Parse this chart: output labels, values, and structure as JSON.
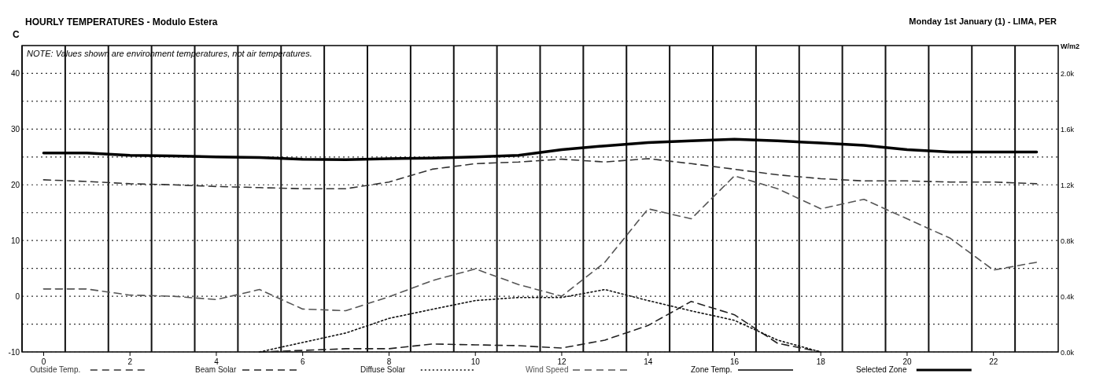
{
  "chart_data": {
    "type": "line",
    "title": "HOURLY TEMPERATURES - Modulo Estera",
    "subtitle": "Monday 1st January (1) - LIMA, PER",
    "ylabel": "C",
    "y2label": "W/m2",
    "annotations": [
      "NOTE: Values shown are environment temperatures, not air temperatures."
    ],
    "x": [
      0,
      1,
      2,
      3,
      4,
      5,
      6,
      7,
      8,
      9,
      10,
      11,
      12,
      13,
      14,
      15,
      16,
      17,
      18,
      19,
      20,
      21,
      22,
      23
    ],
    "xlim": [
      -0.5,
      23.5
    ],
    "xticks": [
      0,
      2,
      4,
      6,
      8,
      10,
      12,
      14,
      16,
      18,
      20,
      22,
      {
        "value": -0.5,
        "label": null
      },
      {
        "value": 0.5,
        "label": null
      },
      {
        "value": 1.5,
        "label": null
      },
      {
        "value": 2.5,
        "label": null
      },
      {
        "value": 3.5,
        "label": null
      },
      {
        "value": 4.5,
        "label": null
      },
      {
        "value": 5.5,
        "label": null
      },
      {
        "value": 6.5,
        "label": null
      },
      {
        "value": 7.5,
        "label": null
      },
      {
        "value": 8.5,
        "label": null
      },
      {
        "value": 9.5,
        "label": null
      },
      {
        "value": 10.5,
        "label": null
      },
      {
        "value": 11.5,
        "label": null
      },
      {
        "value": 12.5,
        "label": null
      },
      {
        "value": 13.5,
        "label": null
      },
      {
        "value": 14.5,
        "label": null
      },
      {
        "value": 15.5,
        "label": null
      },
      {
        "value": 16.5,
        "label": null
      },
      {
        "value": 17.5,
        "label": null
      },
      {
        "value": 18.5,
        "label": null
      },
      {
        "value": 19.5,
        "label": null
      },
      {
        "value": 20.5,
        "label": null
      },
      {
        "value": 21.5,
        "label": null
      },
      {
        "value": 22.5,
        "label": null
      }
    ],
    "ylim": [
      -10,
      45
    ],
    "yticks": [
      -10,
      0,
      10,
      20,
      30,
      40,
      {
        "value": -5,
        "label": null
      },
      {
        "value": 5,
        "label": null
      },
      {
        "value": 15,
        "label": null
      },
      {
        "value": 25,
        "label": null
      },
      {
        "value": 35,
        "label": null
      }
    ],
    "y2lim": [
      0,
      2200
    ],
    "y2ticks": [
      {
        "value": 0,
        "label": "0.0k"
      },
      {
        "value": 400,
        "label": "0.4k"
      },
      {
        "value": 800,
        "label": "0.8k"
      },
      {
        "value": 1200,
        "label": "1.2k"
      },
      {
        "value": 1600,
        "label": "1.6k"
      },
      {
        "value": 2000,
        "label": "2.0k"
      }
    ],
    "grid": true,
    "legend": "bottom",
    "series": [
      {
        "name": "Outside Temp.",
        "color": "#333333",
        "line_style": "dashed",
        "values": [
          20.9,
          20.6,
          20.2,
          20.0,
          19.7,
          19.5,
          19.3,
          19.3,
          20.5,
          22.8,
          23.8,
          24.1,
          24.6,
          24.1,
          24.7,
          23.8,
          22.8,
          21.8,
          21.1,
          20.7,
          20.7,
          20.5,
          20.5,
          20.2
        ]
      },
      {
        "name": "Beam Solar",
        "color": "#222222",
        "line_style": "dashed",
        "axis": "y2",
        "values": [
          null,
          null,
          null,
          null,
          null,
          0,
          11,
          23,
          23,
          57,
          51,
          45,
          28,
          85,
          190,
          363,
          267,
          62,
          0,
          null,
          null,
          null,
          null,
          null
        ]
      },
      {
        "name": "Diffuse Solar",
        "color": "#111111",
        "line_style": "dotted",
        "axis": "y2",
        "values": [
          null,
          null,
          null,
          null,
          null,
          0,
          68,
          136,
          241,
          306,
          369,
          391,
          391,
          448,
          369,
          295,
          227,
          85,
          0,
          null,
          null,
          null,
          null,
          null
        ]
      },
      {
        "name": "Wind Speed",
        "color": "#555555",
        "line_style": "dashed",
        "values": [
          1.3,
          1.3,
          0.2,
          0,
          -0.6,
          1.2,
          -2.3,
          -2.6,
          -0.1,
          2.8,
          4.9,
          2.1,
          0,
          6.1,
          15.7,
          13.9,
          21.6,
          19.3,
          15.7,
          17.4,
          13.9,
          10.4,
          4.7,
          6.1
        ]
      },
      {
        "name": "Zone Temp.",
        "color": "#000000",
        "line_style": "solid",
        "values": [
          null,
          null,
          null,
          null,
          null,
          null,
          null,
          null,
          null,
          null,
          null,
          null,
          null,
          null,
          null,
          null,
          null,
          null,
          null,
          null,
          null,
          null,
          null,
          null
        ]
      },
      {
        "name": "Selected Zone",
        "color": "#000000",
        "line_style": "solid",
        "values": [
          25.7,
          25.7,
          25.3,
          25.2,
          25.0,
          24.9,
          24.6,
          24.5,
          24.7,
          24.8,
          25.0,
          25.3,
          26.3,
          27.0,
          27.6,
          27.9,
          28.2,
          27.9,
          27.5,
          27.1,
          26.3,
          25.9,
          25.9,
          25.9
        ]
      }
    ]
  }
}
